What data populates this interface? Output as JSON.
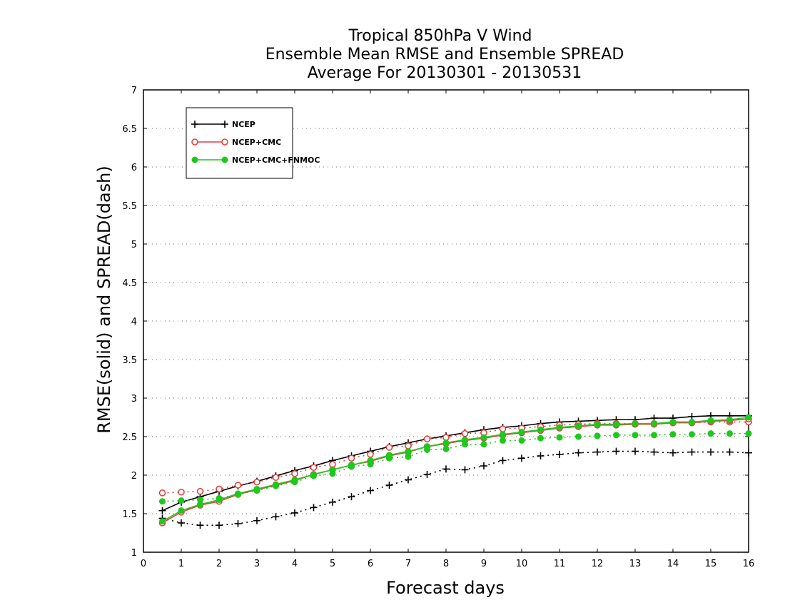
{
  "chart_data": {
    "type": "line",
    "title": [
      "Tropical 850hPa V Wind",
      "Ensemble Mean RMSE and Ensemble SPREAD",
      "Average For 20130301 - 20130531"
    ],
    "xlabel": "Forecast days",
    "ylabel": "RMSE(solid) and SPREAD(dash)",
    "xlim": [
      0,
      16
    ],
    "ylim": [
      1,
      7
    ],
    "xticks": [
      "0",
      "1",
      "2",
      "3",
      "4",
      "5",
      "6",
      "7",
      "8",
      "9",
      "10",
      "11",
      "12",
      "13",
      "14",
      "15",
      "16"
    ],
    "yticks": [
      "1",
      "1.5",
      "2",
      "2.5",
      "3",
      "3.5",
      "4",
      "4.5",
      "5",
      "5.5",
      "6",
      "6.5",
      "7"
    ],
    "grid": "horizontal dotted",
    "legend_position": "top-left",
    "x": [
      0.5,
      1,
      1.5,
      2,
      2.5,
      3,
      3.5,
      4,
      4.5,
      5,
      5.5,
      6,
      6.5,
      7,
      7.5,
      8,
      8.5,
      9,
      9.5,
      10,
      10.5,
      11,
      11.5,
      12,
      12.5,
      13,
      13.5,
      14,
      14.5,
      15,
      15.5,
      16
    ],
    "series": [
      {
        "name": "NCEP",
        "color": "#000000",
        "marker": "plus",
        "rmse": [
          1.54,
          1.65,
          1.72,
          1.79,
          1.86,
          1.92,
          1.99,
          2.06,
          2.12,
          2.19,
          2.25,
          2.31,
          2.37,
          2.42,
          2.47,
          2.51,
          2.55,
          2.59,
          2.62,
          2.64,
          2.67,
          2.69,
          2.7,
          2.71,
          2.72,
          2.72,
          2.74,
          2.74,
          2.76,
          2.77,
          2.77,
          2.77
        ],
        "spread": [
          1.44,
          1.38,
          1.35,
          1.35,
          1.37,
          1.41,
          1.46,
          1.51,
          1.58,
          1.65,
          1.72,
          1.8,
          1.87,
          1.94,
          2.01,
          2.08,
          2.07,
          2.12,
          2.19,
          2.22,
          2.25,
          2.27,
          2.29,
          2.3,
          2.31,
          2.31,
          2.3,
          2.29,
          2.3,
          2.3,
          2.3,
          2.29
        ]
      },
      {
        "name": "NCEP+CMC",
        "color": "#e84040",
        "marker": "open-circle",
        "rmse": [
          1.38,
          1.52,
          1.61,
          1.66,
          1.75,
          1.81,
          1.87,
          1.93,
          2.01,
          2.07,
          2.13,
          2.18,
          2.25,
          2.3,
          2.37,
          2.41,
          2.45,
          2.48,
          2.52,
          2.55,
          2.58,
          2.61,
          2.63,
          2.65,
          2.65,
          2.66,
          2.66,
          2.68,
          2.68,
          2.7,
          2.71,
          2.73
        ],
        "spread": [
          1.77,
          1.78,
          1.79,
          1.82,
          1.87,
          1.91,
          1.97,
          2.02,
          2.1,
          2.14,
          2.22,
          2.27,
          2.36,
          2.38,
          2.47,
          2.49,
          2.54,
          2.55,
          2.6,
          2.61,
          2.63,
          2.65,
          2.66,
          2.67,
          2.67,
          2.67,
          2.67,
          2.68,
          2.68,
          2.69,
          2.69,
          2.69
        ]
      },
      {
        "name": "NCEP+CMC+FNMOC",
        "color": "#1ec81e",
        "marker": "filled-circle",
        "rmse": [
          1.4,
          1.54,
          1.62,
          1.68,
          1.76,
          1.82,
          1.88,
          1.94,
          2.01,
          2.07,
          2.13,
          2.19,
          2.26,
          2.31,
          2.37,
          2.42,
          2.46,
          2.49,
          2.53,
          2.56,
          2.59,
          2.62,
          2.64,
          2.66,
          2.66,
          2.67,
          2.67,
          2.69,
          2.69,
          2.71,
          2.72,
          2.75
        ],
        "spread": [
          1.66,
          1.67,
          1.68,
          1.7,
          1.75,
          1.8,
          1.86,
          1.91,
          1.99,
          2.02,
          2.11,
          2.14,
          2.22,
          2.24,
          2.33,
          2.34,
          2.4,
          2.4,
          2.45,
          2.45,
          2.48,
          2.49,
          2.5,
          2.51,
          2.52,
          2.52,
          2.52,
          2.53,
          2.53,
          2.54,
          2.54,
          2.54
        ]
      }
    ]
  }
}
